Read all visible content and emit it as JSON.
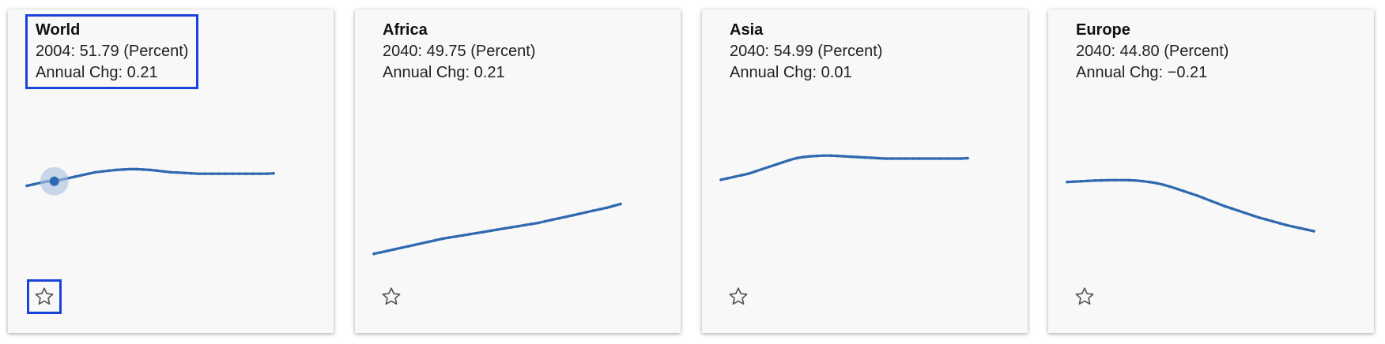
{
  "colors": {
    "line": "#2f69b0",
    "highlight": "#1a44d9",
    "hover_halo": "#a9c0e0"
  },
  "cards": [
    {
      "title": "World",
      "value_line": "2004: 51.79 (Percent)",
      "change_line": "Annual Chg: 0.21",
      "selected": true,
      "star_icon": "star-outline-icon",
      "chart_data": {
        "type": "line",
        "hover_index": 4,
        "ylim": [
          38,
          62
        ],
        "values": [
          51.2,
          51.4,
          51.6,
          51.8,
          51.8,
          52.0,
          52.2,
          52.4,
          52.6,
          52.8,
          53.0,
          53.1,
          53.2,
          53.3,
          53.35,
          53.4,
          53.4,
          53.35,
          53.3,
          53.2,
          53.1,
          53.0,
          52.95,
          52.9,
          52.85,
          52.8,
          52.8,
          52.8,
          52.8,
          52.8,
          52.8,
          52.8,
          52.8,
          52.8,
          52.8,
          52.8,
          52.85
        ]
      }
    },
    {
      "title": "Africa",
      "value_line": "2040: 49.75 (Percent)",
      "change_line": "Annual Chg: 0.21",
      "selected": false,
      "star_icon": "star-outline-icon",
      "chart_data": {
        "type": "line",
        "ylim": [
          38,
          62
        ],
        "values": [
          42.2,
          42.4,
          42.6,
          42.8,
          43.0,
          43.2,
          43.4,
          43.6,
          43.8,
          44.0,
          44.2,
          44.35,
          44.5,
          44.65,
          44.8,
          44.95,
          45.1,
          45.25,
          45.4,
          45.55,
          45.7,
          45.85,
          46.0,
          46.15,
          46.3,
          46.5,
          46.7,
          46.9,
          47.1,
          47.3,
          47.5,
          47.7,
          47.9,
          48.1,
          48.3,
          48.55,
          48.8
        ]
      }
    },
    {
      "title": "Asia",
      "value_line": "2040: 54.99 (Percent)",
      "change_line": "Annual Chg: 0.01",
      "selected": false,
      "star_icon": "star-outline-icon",
      "chart_data": {
        "type": "line",
        "ylim": [
          38,
          62
        ],
        "values": [
          52.0,
          52.2,
          52.4,
          52.6,
          52.8,
          53.1,
          53.4,
          53.7,
          54.0,
          54.3,
          54.6,
          54.85,
          55.0,
          55.1,
          55.15,
          55.2,
          55.2,
          55.15,
          55.1,
          55.05,
          55.0,
          54.95,
          54.9,
          54.85,
          54.8,
          54.8,
          54.8,
          54.8,
          54.8,
          54.8,
          54.8,
          54.8,
          54.8,
          54.8,
          54.8,
          54.8,
          54.85
        ]
      }
    },
    {
      "title": "Europe",
      "value_line": "2040: 44.80 (Percent)",
      "change_line": "Annual Chg: −0.21",
      "selected": false,
      "star_icon": "star-outline-icon",
      "chart_data": {
        "type": "line",
        "ylim": [
          38,
          62
        ],
        "values": [
          51.7,
          51.75,
          51.8,
          51.85,
          51.9,
          51.92,
          51.94,
          51.95,
          51.95,
          51.94,
          51.9,
          51.82,
          51.7,
          51.55,
          51.35,
          51.1,
          50.8,
          50.5,
          50.2,
          49.9,
          49.55,
          49.2,
          48.85,
          48.5,
          48.2,
          47.9,
          47.6,
          47.3,
          47.0,
          46.75,
          46.5,
          46.25,
          46.0,
          45.8,
          45.6,
          45.4,
          45.2
        ]
      }
    }
  ]
}
